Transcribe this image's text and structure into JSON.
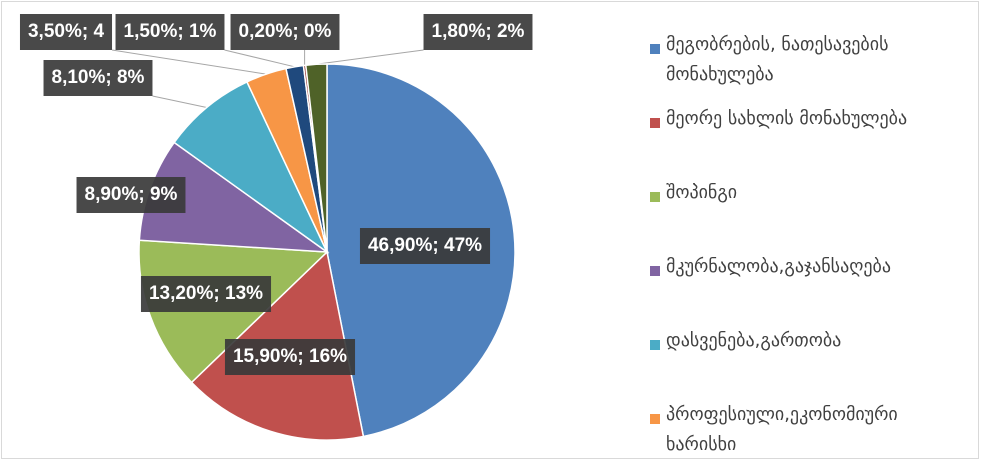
{
  "chart_data": {
    "type": "pie",
    "categories": [
      "მეგობრების, ნათესავების მონახულება",
      "მეორე სახლის მონახულება",
      "შოპინგი",
      "მკურნალობა,გაჯანსაღება",
      "დასვენება,გართობა",
      "პროფესიული,ეკონომიური ხარისხი",
      null,
      null,
      null
    ],
    "values": [
      46.9,
      15.9,
      13.2,
      8.9,
      8.1,
      3.5,
      1.5,
      0.2,
      1.8
    ],
    "value_labels": [
      "46,90%; 47%",
      "15,90%; 16%",
      "13,20%; 13%",
      "8,90%; 9%",
      "8,10%; 8%",
      "3,50%; 4",
      "1,50%; 1%",
      "0,20%; 0%",
      "1,80%; 2%"
    ],
    "colors": [
      "#4f81bd",
      "#c0504d",
      "#9bbb59",
      "#8064a2",
      "#4bacc6",
      "#f79646",
      "#1f497d",
      "#943634",
      "#4f6228"
    ],
    "legend": "right"
  }
}
